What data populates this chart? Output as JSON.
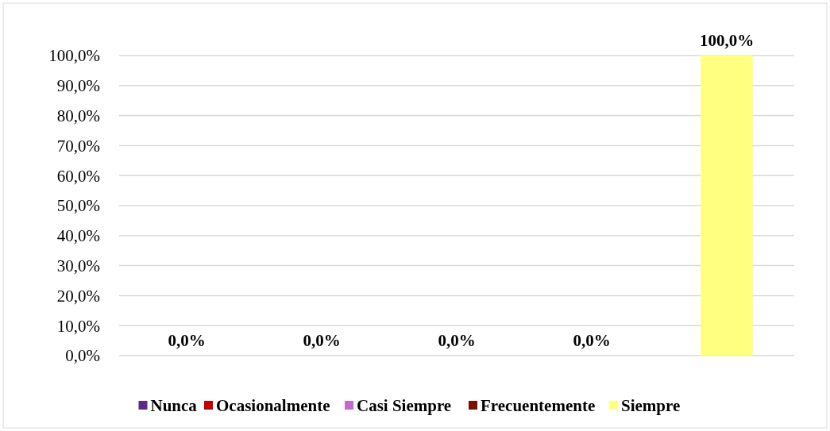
{
  "chart_data": {
    "type": "bar",
    "categories": [
      null,
      null,
      null,
      null,
      null
    ],
    "series": [
      {
        "name": "Nunca",
        "color": "#5b2c86",
        "values": [
          0,
          null,
          null,
          null,
          null
        ],
        "value_labels": [
          "0,0%",
          null,
          null,
          null,
          null
        ]
      },
      {
        "name": "Ocasionalmente",
        "color": "#c00000",
        "values": [
          null,
          0,
          null,
          null,
          null
        ],
        "value_labels": [
          null,
          "0,0%",
          null,
          null,
          null
        ]
      },
      {
        "name": "Casi Siempre",
        "color": "#c36bcb",
        "values": [
          null,
          null,
          0,
          null,
          null
        ],
        "value_labels": [
          null,
          null,
          "0,0%",
          null,
          null
        ]
      },
      {
        "name": "Frecuentemente",
        "color": "#7b1000",
        "values": [
          null,
          null,
          null,
          0,
          null
        ],
        "value_labels": [
          null,
          null,
          null,
          "0,0%",
          null
        ]
      },
      {
        "name": "Siempre",
        "color": "#ffff80",
        "values": [
          null,
          null,
          null,
          null,
          100
        ],
        "value_labels": [
          null,
          null,
          null,
          null,
          "100,0%"
        ]
      }
    ],
    "ylim": [
      0,
      100
    ],
    "yticks": [
      {
        "value": 0,
        "label": "0,0%"
      },
      {
        "value": 10,
        "label": "10,0%"
      },
      {
        "value": 20,
        "label": "20,0%"
      },
      {
        "value": 30,
        "label": "30,0%"
      },
      {
        "value": 40,
        "label": "40,0%"
      },
      {
        "value": 50,
        "label": "50,0%"
      },
      {
        "value": 60,
        "label": "60,0%"
      },
      {
        "value": 70,
        "label": "70,0%"
      },
      {
        "value": 80,
        "label": "80,0%"
      },
      {
        "value": 90,
        "label": "90,0%"
      },
      {
        "value": 100,
        "label": "100,0%"
      }
    ],
    "grid": "y",
    "legend": "bottom"
  }
}
